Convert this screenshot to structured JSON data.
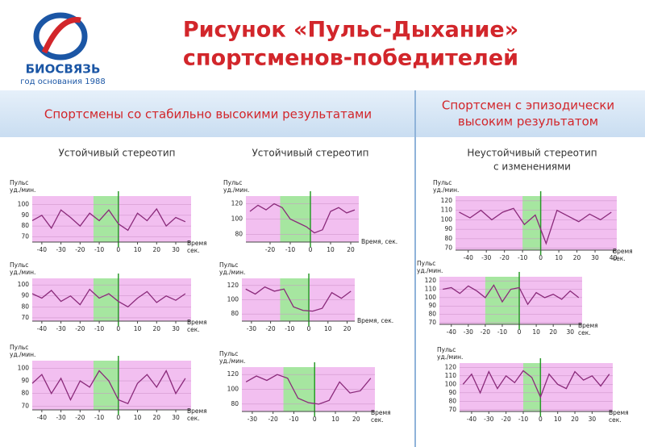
{
  "header": {
    "title_lines": [
      "Рисунок «Пульс-Дыхание»",
      "спортсменов-победителей"
    ],
    "logo_name": "БИОСВЯЗЬ",
    "logo_sub": "год основания 1988"
  },
  "sections": {
    "left": "Спортсмены со стабильно высокими результатами",
    "right": [
      "Спортсмен с эпизодически",
      "высоким результатом"
    ]
  },
  "columns": [
    [
      "Устойчивый стереотип"
    ],
    [
      "Устойчивый стереотип"
    ],
    [
      "Неустойчивый стереотип",
      "с изменениями"
    ]
  ],
  "charts": [
    {
      "type": "line",
      "ylabel": [
        "Пульс",
        "уд./мин."
      ],
      "xlabel": [
        "Время",
        "сек."
      ],
      "xlim": [
        -45,
        38
      ],
      "ylim": [
        65,
        108
      ],
      "xticks": [
        -40,
        -30,
        -20,
        -10,
        0,
        10,
        20,
        30
      ],
      "yticks": [
        70,
        80,
        90,
        100
      ],
      "highlight": [
        -13,
        0
      ],
      "x": [
        -45,
        -40,
        -35,
        -30,
        -25,
        -20,
        -15,
        -10,
        -5,
        0,
        5,
        10,
        15,
        20,
        25,
        30,
        35
      ],
      "values": [
        85,
        90,
        78,
        95,
        88,
        80,
        92,
        85,
        95,
        82,
        76,
        92,
        85,
        96,
        80,
        88,
        84
      ]
    },
    {
      "type": "line",
      "ylabel": [
        "Пульс",
        "уд./мин."
      ],
      "xlabel": [
        "Время",
        "сек."
      ],
      "xlim": [
        -45,
        38
      ],
      "ylim": [
        67,
        106
      ],
      "xticks": [
        -40,
        -30,
        -20,
        -10,
        0,
        10,
        20,
        30
      ],
      "yticks": [
        70,
        80,
        90,
        100
      ],
      "highlight": [
        -13,
        0
      ],
      "x": [
        -45,
        -40,
        -35,
        -30,
        -25,
        -20,
        -15,
        -10,
        -5,
        0,
        5,
        10,
        15,
        20,
        25,
        30,
        35
      ],
      "values": [
        92,
        88,
        95,
        85,
        90,
        82,
        96,
        88,
        92,
        85,
        80,
        88,
        94,
        84,
        90,
        86,
        92
      ]
    },
    {
      "type": "line",
      "ylabel": [
        "Пульс",
        "уд./мин."
      ],
      "xlabel": [
        "Время",
        "сек."
      ],
      "xlim": [
        -45,
        38
      ],
      "ylim": [
        67,
        106
      ],
      "xticks": [
        -40,
        -30,
        -20,
        -10,
        0,
        10,
        20,
        30
      ],
      "yticks": [
        70,
        80,
        90,
        100
      ],
      "highlight": [
        -13,
        0
      ],
      "x": [
        -45,
        -40,
        -35,
        -30,
        -25,
        -20,
        -15,
        -10,
        -5,
        0,
        5,
        10,
        15,
        20,
        25,
        30,
        35
      ],
      "values": [
        88,
        95,
        80,
        92,
        75,
        90,
        85,
        98,
        90,
        75,
        72,
        88,
        95,
        85,
        98,
        80,
        92
      ]
    },
    {
      "type": "line",
      "ylabel": [
        "Пульс",
        "уд./мин."
      ],
      "xlabel": [
        "Время, сек."
      ],
      "xlim": [
        -32,
        24
      ],
      "ylim": [
        70,
        130
      ],
      "xticks": [
        -20,
        -10,
        0,
        10,
        20
      ],
      "yticks": [
        80,
        100,
        120
      ],
      "highlight": [
        -15,
        0
      ],
      "x": [
        -30,
        -26,
        -22,
        -18,
        -14,
        -10,
        -6,
        -2,
        2,
        6,
        10,
        14,
        18,
        22
      ],
      "values": [
        110,
        118,
        112,
        120,
        115,
        100,
        95,
        90,
        82,
        86,
        110,
        115,
        108,
        112
      ]
    },
    {
      "type": "line",
      "ylabel": [
        "Пульс",
        "уд./мин."
      ],
      "xlabel": [
        "Время, сек."
      ],
      "xlim": [
        -35,
        24
      ],
      "ylim": [
        70,
        130
      ],
      "xticks": [
        -30,
        -20,
        -10,
        0,
        10,
        20
      ],
      "yticks": [
        80,
        100,
        120
      ],
      "highlight": [
        -15,
        0
      ],
      "x": [
        -33,
        -28,
        -23,
        -18,
        -13,
        -8,
        -3,
        2,
        7,
        12,
        17,
        22
      ],
      "values": [
        115,
        108,
        118,
        112,
        115,
        90,
        85,
        84,
        88,
        110,
        102,
        112
      ]
    },
    {
      "type": "line",
      "ylabel": [
        "Пульс",
        "уд./мин."
      ],
      "xlabel": [
        "Время",
        "сек."
      ],
      "xlim": [
        -35,
        29
      ],
      "ylim": [
        70,
        130
      ],
      "xticks": [
        -30,
        -20,
        -10,
        0,
        10,
        20
      ],
      "yticks": [
        80,
        100,
        120
      ],
      "highlight": [
        -15,
        0
      ],
      "x": [
        -33,
        -28,
        -23,
        -18,
        -13,
        -8,
        -3,
        2,
        7,
        12,
        17,
        22,
        27
      ],
      "values": [
        110,
        118,
        112,
        120,
        115,
        88,
        82,
        80,
        85,
        110,
        95,
        98,
        115
      ]
    },
    {
      "type": "line",
      "ylabel": [
        "Пульс",
        "уд./мин."
      ],
      "xlabel": [
        "Время",
        "сек."
      ],
      "xlim": [
        -47,
        42
      ],
      "ylim": [
        68,
        125
      ],
      "xticks": [
        -40,
        -30,
        -20,
        -10,
        0,
        10,
        20,
        30,
        40
      ],
      "yticks": [
        70,
        80,
        90,
        100,
        110,
        120
      ],
      "highlight": [
        -10,
        0
      ],
      "x": [
        -45,
        -39,
        -33,
        -27,
        -21,
        -15,
        -9,
        -3,
        3,
        9,
        15,
        21,
        27,
        33,
        39
      ],
      "values": [
        108,
        102,
        110,
        100,
        108,
        112,
        95,
        105,
        75,
        110,
        104,
        98,
        106,
        100,
        108
      ]
    },
    {
      "type": "line",
      "ylabel": [
        "Пульс",
        "уд./мин."
      ],
      "xlabel": [
        "Время",
        "сек."
      ],
      "xlim": [
        -47,
        37
      ],
      "ylim": [
        68,
        125
      ],
      "xticks": [
        -40,
        -30,
        -20,
        -10,
        0,
        10,
        20,
        30
      ],
      "yticks": [
        70,
        80,
        90,
        100,
        110,
        120
      ],
      "highlight": [
        -20,
        0
      ],
      "x": [
        -45,
        -40,
        -35,
        -30,
        -25,
        -20,
        -15,
        -10,
        -5,
        0,
        5,
        10,
        15,
        20,
        25,
        30,
        35
      ],
      "values": [
        110,
        112,
        105,
        114,
        108,
        100,
        115,
        95,
        110,
        112,
        92,
        106,
        100,
        104,
        98,
        108,
        100
      ]
    },
    {
      "type": "line",
      "ylabel": [
        "Пульс",
        "уд./мин."
      ],
      "xlabel": [
        "Время",
        "сек."
      ],
      "xlim": [
        -47,
        42
      ],
      "ylim": [
        68,
        125
      ],
      "xticks": [
        -40,
        -30,
        -20,
        -10,
        0,
        10,
        20,
        30
      ],
      "yticks": [
        70,
        80,
        90,
        100,
        110,
        120
      ],
      "highlight": [
        -10,
        0
      ],
      "x": [
        -45,
        -40,
        -35,
        -30,
        -25,
        -20,
        -15,
        -10,
        -5,
        0,
        5,
        10,
        15,
        20,
        25,
        30,
        35,
        40
      ],
      "values": [
        100,
        112,
        90,
        115,
        95,
        110,
        102,
        116,
        108,
        85,
        112,
        100,
        95,
        115,
        105,
        110,
        98,
        112
      ]
    }
  ]
}
